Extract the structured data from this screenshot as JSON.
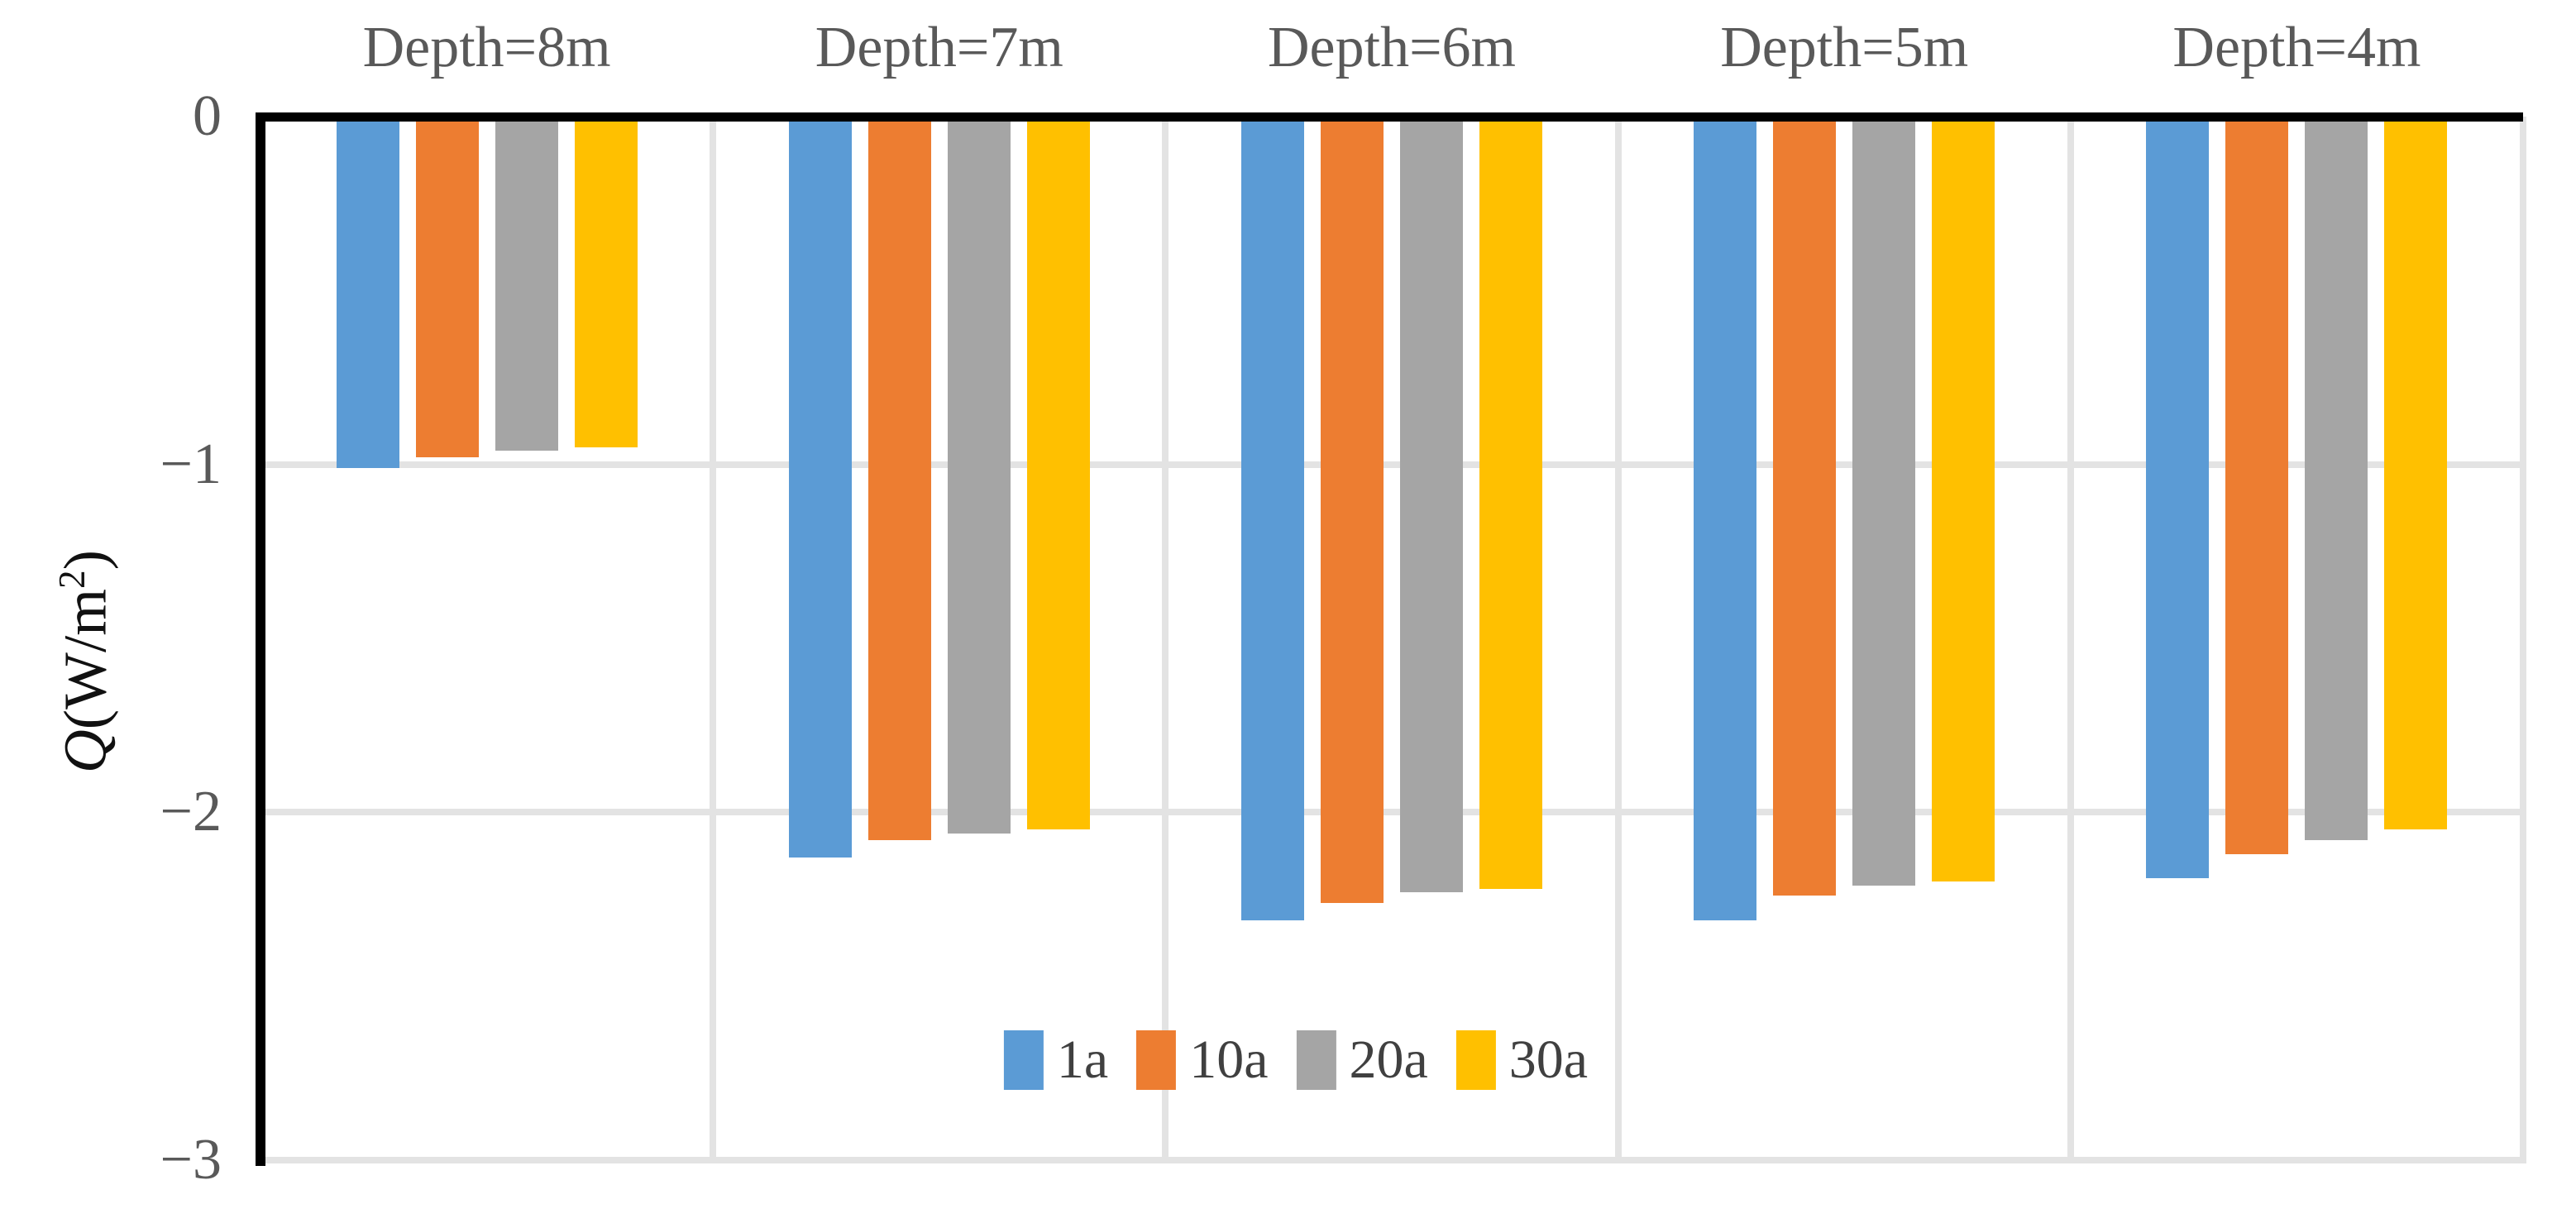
{
  "chart_data": {
    "type": "bar",
    "orientation": "vertical-negative",
    "title": "",
    "categories": [
      "Depth=8m",
      "Depth=7m",
      "Depth=6m",
      "Depth=5m",
      "Depth=4m"
    ],
    "series": [
      {
        "name": "1a",
        "color": "#5B9BD5",
        "values": [
          -1.01,
          -2.13,
          -2.31,
          -2.31,
          -2.19
        ]
      },
      {
        "name": "10a",
        "color": "#ED7D31",
        "values": [
          -0.98,
          -2.08,
          -2.26,
          -2.24,
          -2.12
        ]
      },
      {
        "name": "20a",
        "color": "#A5A5A5",
        "values": [
          -0.96,
          -2.06,
          -2.23,
          -2.21,
          -2.08
        ]
      },
      {
        "name": "30a",
        "color": "#FFC000",
        "values": [
          -0.95,
          -2.05,
          -2.22,
          -2.2,
          -2.05
        ]
      }
    ],
    "xlabel": "",
    "ylabel": "Q(W/m²)",
    "ylabel_parts": {
      "symbol": "Q",
      "open": "(W/m",
      "sup": "2",
      "close": ")"
    },
    "ylim": [
      0,
      -3
    ],
    "y_ticks": [
      {
        "label": "0",
        "value": 0
      },
      {
        "label": "−1",
        "value": -1
      },
      {
        "label": "−2",
        "value": -2
      },
      {
        "label": "−3",
        "value": -3
      }
    ],
    "grid": true,
    "grid_color": "#E3E3E3",
    "axis_color": "#000000",
    "tick_text_color": "#595959",
    "category_text_color": "#595959",
    "legend_position": "bottom-center-inside",
    "legend_entries": [
      "1a",
      "10a",
      "20a",
      "30a"
    ]
  }
}
